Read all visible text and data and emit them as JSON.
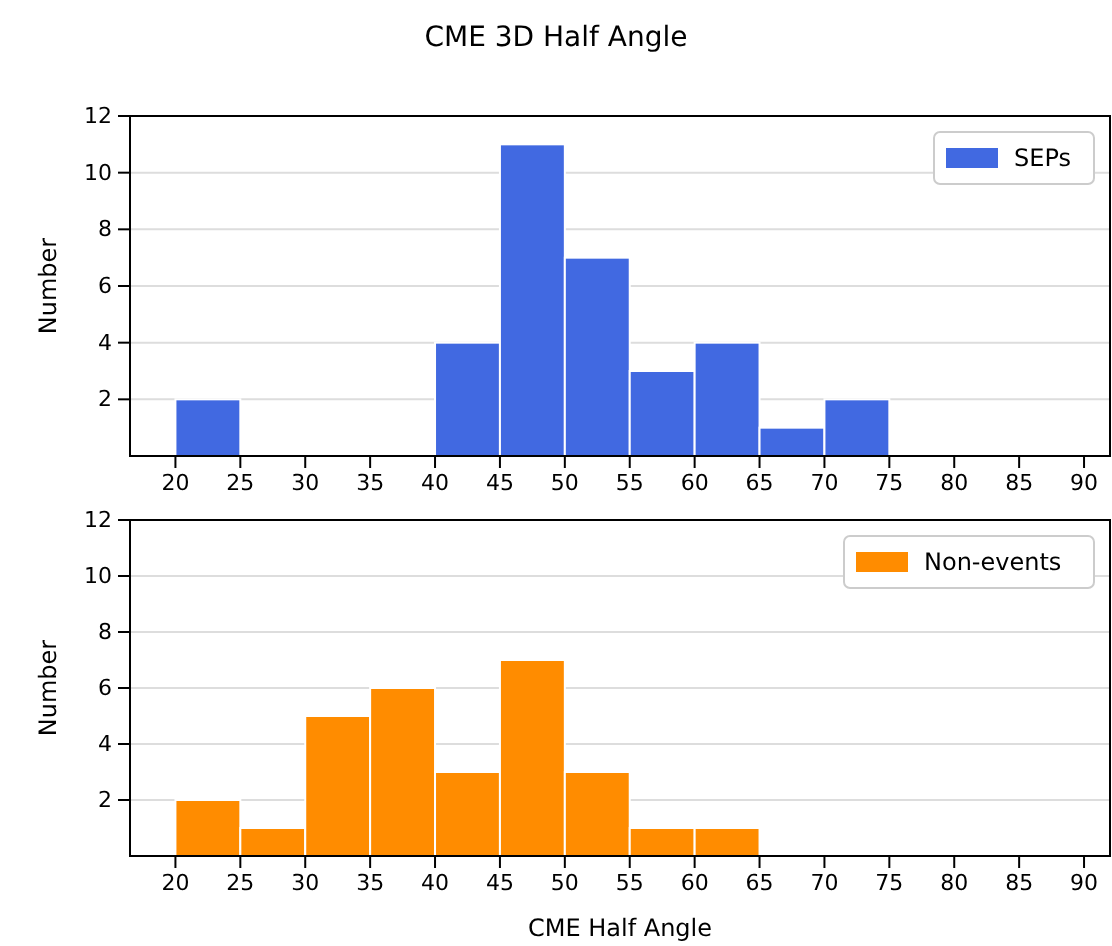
{
  "chart_data": [
    {
      "type": "histogram",
      "title": "CME 3D Half Angle",
      "ylabel": "Number",
      "bins": [
        20,
        25,
        30,
        35,
        40,
        45,
        50,
        55,
        60,
        65,
        70,
        75,
        80,
        85,
        90
      ],
      "series": [
        {
          "name": "SEPs",
          "color": "#4169e1",
          "values": [
            2,
            0,
            0,
            0,
            4,
            11,
            7,
            3,
            4,
            1,
            2,
            0,
            0,
            0
          ]
        }
      ],
      "xlim": [
        16.5,
        92
      ],
      "xticks": [
        20,
        25,
        30,
        35,
        40,
        45,
        50,
        55,
        60,
        65,
        70,
        75,
        80,
        85,
        90
      ],
      "ylim": [
        0,
        12
      ],
      "yticks": [
        2,
        4,
        6,
        8,
        10,
        12
      ],
      "grid": "y",
      "legend": "top right"
    },
    {
      "type": "histogram",
      "xlabel": "CME Half Angle",
      "ylabel": "Number",
      "bins": [
        20,
        25,
        30,
        35,
        40,
        45,
        50,
        55,
        60,
        65,
        70,
        75,
        80,
        85,
        90
      ],
      "series": [
        {
          "name": "Non-events",
          "color": "#ff8c00",
          "values": [
            2,
            1,
            5,
            6,
            3,
            7,
            3,
            1,
            1,
            0,
            0,
            0,
            0,
            0
          ]
        }
      ],
      "xlim": [
        16.5,
        92
      ],
      "xticks": [
        20,
        25,
        30,
        35,
        40,
        45,
        50,
        55,
        60,
        65,
        70,
        75,
        80,
        85,
        90
      ],
      "ylim": [
        0,
        12
      ],
      "yticks": [
        2,
        4,
        6,
        8,
        10,
        12
      ],
      "grid": "y",
      "legend": "top right"
    }
  ]
}
